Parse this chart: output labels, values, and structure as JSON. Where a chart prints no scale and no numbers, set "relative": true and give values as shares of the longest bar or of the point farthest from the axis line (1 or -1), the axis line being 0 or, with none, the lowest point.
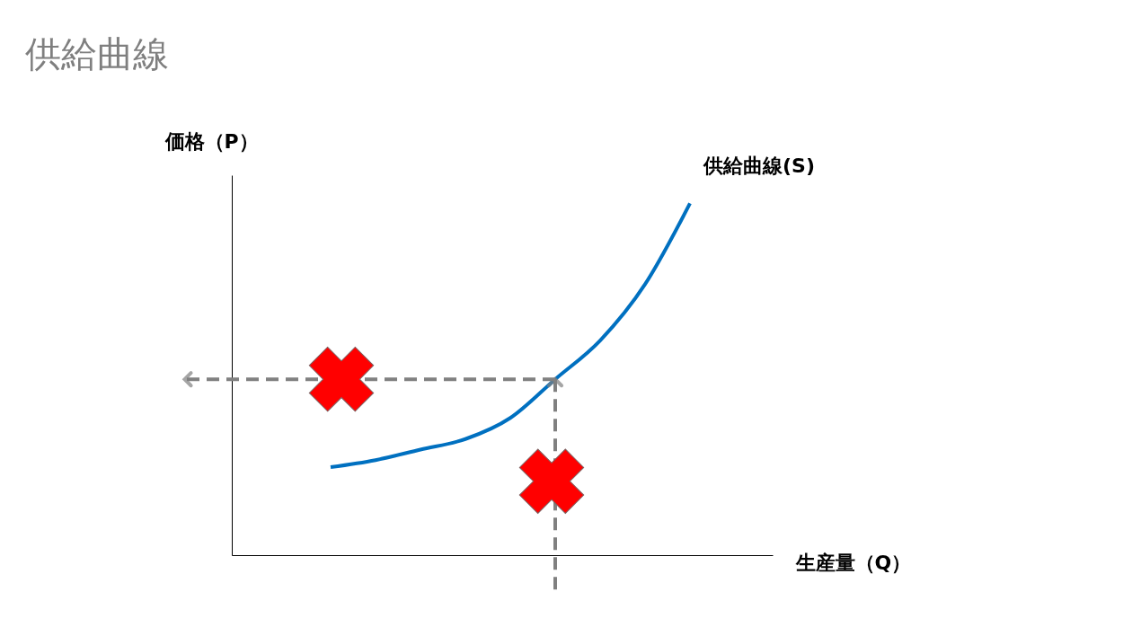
{
  "chart_data": {
    "type": "line",
    "title": "供給曲線",
    "xlabel": "生産量（Q）",
    "ylabel": "価格（P）",
    "relative": true,
    "categories": [
      null,
      null,
      null,
      null,
      null,
      null,
      null,
      null,
      null
    ],
    "series": [
      {
        "name": "供給曲線(S)",
        "color": "#0070c0",
        "values": [
          0.25,
          0.27,
          0.3,
          0.33,
          0.39,
          0.5,
          0.61,
          0.77,
          1.0
        ]
      }
    ],
    "ref_lines": [
      {
        "axis": "y",
        "value": 0.5,
        "color": "#808080",
        "line_style": "dashed"
      }
    ],
    "legend": false,
    "grid": false,
    "marker": "none",
    "line_style": "solid"
  }
}
